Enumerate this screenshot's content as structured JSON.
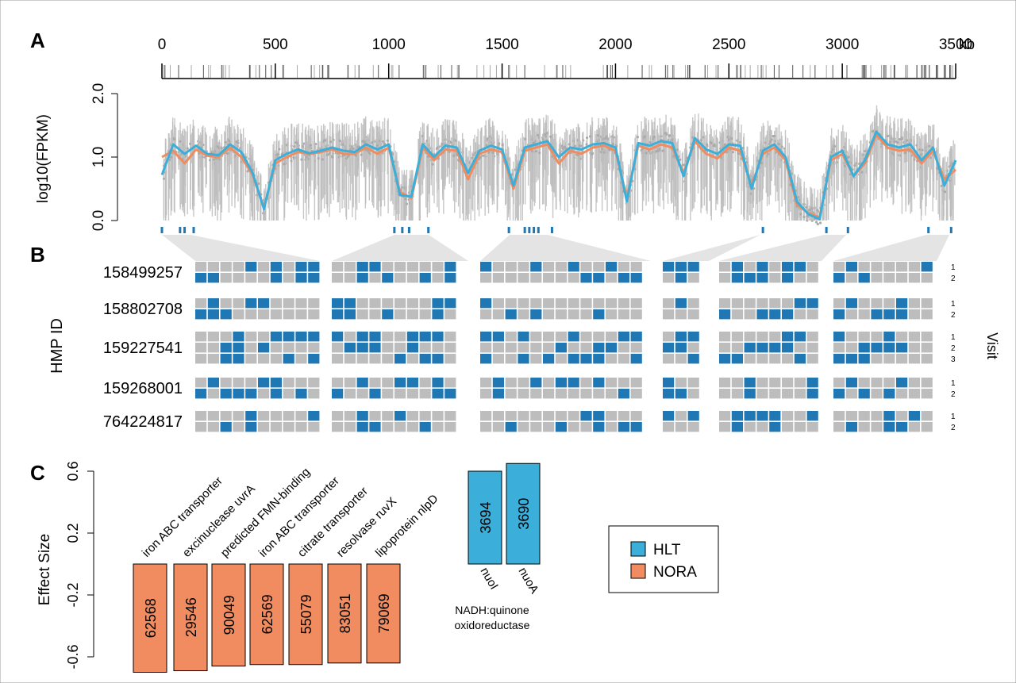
{
  "colors": {
    "hlt": "#3BAFDA",
    "nora": "#F08C5F",
    "grey": "#BDBDBD",
    "mark": "#1F77B4"
  },
  "panel_a": {
    "label": "A",
    "ylabel": "log10(FPKM)",
    "yticks": [
      "0.0",
      "1.0",
      "2.0"
    ],
    "xticks": [
      "0",
      "500",
      "1000",
      "1500",
      "2000",
      "2500",
      "3000",
      "3500"
    ],
    "xunit": "kb"
  },
  "panel_b": {
    "label": "B",
    "axis_label": "HMP ID",
    "visit_label": "Visit",
    "ids": [
      "158499257",
      "158802708",
      "159227541",
      "159268001",
      "764224817"
    ],
    "visits": [
      [
        "1",
        "2"
      ],
      [
        "1",
        "2"
      ],
      [
        "1",
        "2",
        "3"
      ],
      [
        "1",
        "2"
      ],
      [
        "1",
        "2"
      ]
    ]
  },
  "panel_c": {
    "label": "C",
    "ylabel": "Effect Size",
    "yticks": [
      "-0.6",
      "-0.2",
      "0.2",
      "0.6"
    ],
    "group_label_line1": "NADH:quinone",
    "group_label_line2": "oxidoreductase",
    "legend": {
      "hlt": "HLT",
      "nora": "NORA"
    }
  },
  "chart_data": [
    {
      "type": "line",
      "title": "",
      "xlabel": "",
      "xunit": "kb",
      "ylabel": "log10(FPKM)",
      "xlim": [
        0,
        3500
      ],
      "ylim": [
        0,
        2
      ],
      "x": [
        0,
        50,
        100,
        150,
        200,
        250,
        300,
        350,
        400,
        450,
        500,
        550,
        600,
        650,
        700,
        750,
        800,
        850,
        900,
        950,
        1000,
        1050,
        1100,
        1150,
        1200,
        1250,
        1300,
        1350,
        1400,
        1450,
        1500,
        1550,
        1600,
        1650,
        1700,
        1750,
        1800,
        1850,
        1900,
        1950,
        2000,
        2050,
        2100,
        2150,
        2200,
        2250,
        2300,
        2350,
        2400,
        2450,
        2500,
        2550,
        2600,
        2650,
        2700,
        2750,
        2800,
        2850,
        2900,
        2950,
        3000,
        3050,
        3100,
        3150,
        3200,
        3250,
        3300,
        3350,
        3400,
        3450,
        3500
      ],
      "series": [
        {
          "name": "HLT",
          "values": [
            0.72,
            1.2,
            1.05,
            1.18,
            1.05,
            1.03,
            1.2,
            1.08,
            0.75,
            0.18,
            0.95,
            1.05,
            1.12,
            1.06,
            1.1,
            1.15,
            1.1,
            1.08,
            1.2,
            1.12,
            1.2,
            0.4,
            0.38,
            1.2,
            1.0,
            1.18,
            1.15,
            0.75,
            1.1,
            1.18,
            1.12,
            0.55,
            1.15,
            1.2,
            1.25,
            1.0,
            1.15,
            1.12,
            1.2,
            1.22,
            1.15,
            0.3,
            1.22,
            1.18,
            1.25,
            1.22,
            0.7,
            1.3,
            1.12,
            1.05,
            1.2,
            1.18,
            0.5,
            1.1,
            1.2,
            1.0,
            0.3,
            0.1,
            0.02,
            1.0,
            1.1,
            0.7,
            0.95,
            1.4,
            1.2,
            1.15,
            1.2,
            0.95,
            1.15,
            0.55,
            0.95
          ]
        },
        {
          "name": "NORA",
          "values": [
            1.0,
            1.1,
            0.9,
            1.12,
            1.02,
            1.0,
            1.15,
            1.0,
            0.72,
            0.2,
            0.9,
            1.0,
            1.08,
            1.05,
            1.08,
            1.12,
            1.05,
            1.05,
            1.15,
            1.05,
            1.15,
            0.45,
            0.35,
            1.15,
            0.95,
            1.12,
            1.1,
            0.65,
            1.05,
            1.12,
            1.08,
            0.5,
            1.1,
            1.15,
            1.2,
            0.9,
            1.1,
            1.05,
            1.15,
            1.18,
            1.1,
            0.35,
            1.18,
            1.12,
            1.2,
            1.15,
            0.75,
            1.25,
            1.05,
            0.98,
            1.15,
            1.1,
            0.55,
            1.05,
            1.15,
            0.95,
            0.25,
            0.12,
            0.05,
            0.95,
            1.05,
            0.7,
            0.9,
            1.35,
            1.15,
            1.1,
            1.12,
            0.9,
            1.1,
            0.65,
            0.8
          ]
        }
      ]
    },
    {
      "type": "bar",
      "title": "",
      "xlabel": "",
      "ylabel": "Effect Size",
      "ylim": [
        -0.7,
        0.7
      ],
      "categories": [
        "iron ABC transporter",
        "excinuclease uvrA",
        "predicted FMN-binding",
        "iron ABC transporter",
        "citrate transporter",
        "resolvase ruvX",
        "lipoprotein nlpD",
        "nuoI",
        "nuoA"
      ],
      "ids": [
        "62568",
        "29546",
        "90049",
        "62569",
        "55079",
        "83051",
        "79069",
        "3694",
        "3690"
      ],
      "values": [
        -0.7,
        -0.69,
        -0.66,
        -0.65,
        -0.65,
        -0.64,
        -0.64,
        0.6,
        0.65
      ],
      "group": [
        "NORA",
        "NORA",
        "NORA",
        "NORA",
        "NORA",
        "NORA",
        "NORA",
        "HLT",
        "HLT"
      ]
    }
  ]
}
